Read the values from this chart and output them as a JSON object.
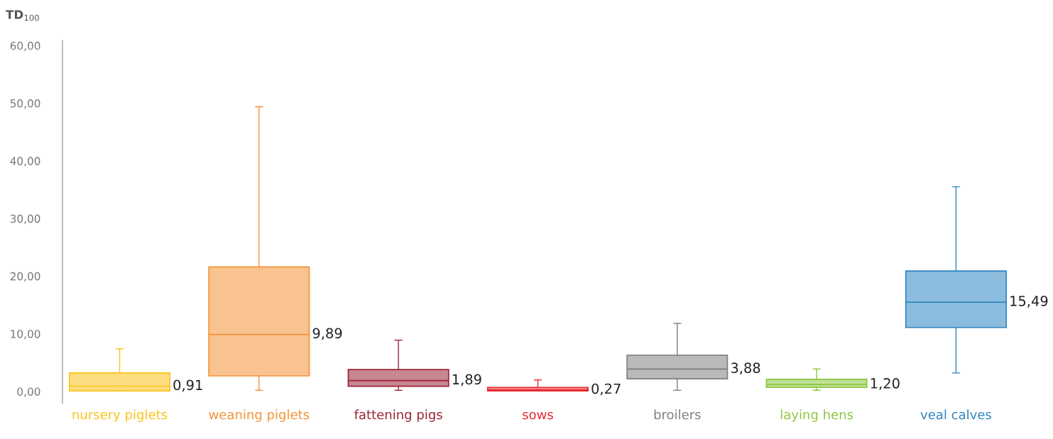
{
  "chart_data": {
    "type": "box",
    "ylabel": "TD$_{100}$",
    "categories": [
      "nursery piglets",
      "weaning piglets",
      "fattening pigs",
      "sows",
      "broilers",
      "laying hens",
      "veal calves"
    ],
    "colors": [
      "#f9c31a",
      "#f39237",
      "#9b2335",
      "#e8262c",
      "#7f7f7f",
      "#8cc63f",
      "#2e86c1"
    ],
    "boxes": [
      {
        "low": 0.1,
        "q1": 0.1,
        "median": 0.91,
        "q3": 3.2,
        "high": 7.4
      },
      {
        "low": 0.2,
        "q1": 2.7,
        "median": 9.89,
        "q3": 21.6,
        "high": 49.4
      },
      {
        "low": 0.2,
        "q1": 0.9,
        "median": 1.89,
        "q3": 3.8,
        "high": 8.9
      },
      {
        "low": 0.1,
        "q1": 0.1,
        "median": 0.27,
        "q3": 0.7,
        "high": 2.0
      },
      {
        "low": 0.2,
        "q1": 2.2,
        "median": 3.88,
        "q3": 6.3,
        "high": 11.8
      },
      {
        "low": 0.2,
        "q1": 0.7,
        "median": 1.2,
        "q3": 2.1,
        "high": 3.9
      },
      {
        "low": 3.2,
        "q1": 11.1,
        "median": 15.49,
        "q3": 20.9,
        "high": 35.5
      }
    ],
    "value_labels": [
      "0,91",
      "9,89",
      "1,89",
      "0,27",
      "3,88",
      "1,20",
      "15,49"
    ],
    "ylim": [
      -2.1,
      60.9
    ],
    "yticks": [
      {
        "value": 0,
        "label": "0,00"
      },
      {
        "value": 10,
        "label": "10,00"
      },
      {
        "value": 20,
        "label": "20,00"
      },
      {
        "value": 30,
        "label": "30,00"
      },
      {
        "value": 40,
        "label": "40,00"
      },
      {
        "value": 50,
        "label": "50,00"
      },
      {
        "value": 60,
        "label": "60,00"
      }
    ],
    "grid": false,
    "legend": false
  }
}
